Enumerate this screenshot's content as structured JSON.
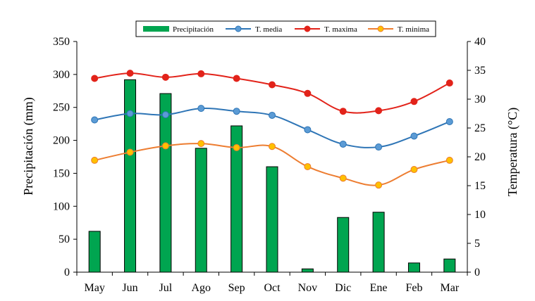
{
  "chart_data": {
    "type": "bar+line",
    "categories": [
      "May",
      "Jun",
      "Jul",
      "Ago",
      "Sep",
      "Oct",
      "Nov",
      "Dic",
      "Ene",
      "Feb",
      "Mar"
    ],
    "bar_series": {
      "name": "Precipitación",
      "color": "#00a550",
      "values": [
        62,
        292,
        271,
        188,
        222,
        160,
        5,
        83,
        91,
        14,
        20
      ]
    },
    "line_series": [
      {
        "name": "T. media",
        "color": "#2e75b6",
        "marker_color": "#5b9bd5",
        "values": [
          26.4,
          27.5,
          27.3,
          28.4,
          27.9,
          27.2,
          24.7,
          22.2,
          21.7,
          23.6,
          26.1
        ]
      },
      {
        "name": "T. maxima",
        "color": "#e2231a",
        "marker_color": "#e2231a",
        "values": [
          33.6,
          34.5,
          33.8,
          34.4,
          33.6,
          32.5,
          31.0,
          27.9,
          28.0,
          29.6,
          32.8
        ]
      },
      {
        "name": "T. minima",
        "color": "#ed7d31",
        "marker_color": "#ffc000",
        "values": [
          19.4,
          20.8,
          21.9,
          22.3,
          21.6,
          21.8,
          18.3,
          16.3,
          15.1,
          17.8,
          19.4
        ]
      }
    ],
    "ylabel_left": "Precipitación (mm)",
    "ylabel_right": "Temperatura (°C)",
    "ylim_left": [
      0,
      350
    ],
    "yticks_left": [
      0,
      50,
      100,
      150,
      200,
      250,
      300,
      350
    ],
    "ylim_right": [
      0,
      40
    ],
    "yticks_right": [
      0,
      5,
      10,
      15,
      20,
      25,
      30,
      35,
      40
    ],
    "grid": false,
    "legend_position": "top"
  }
}
